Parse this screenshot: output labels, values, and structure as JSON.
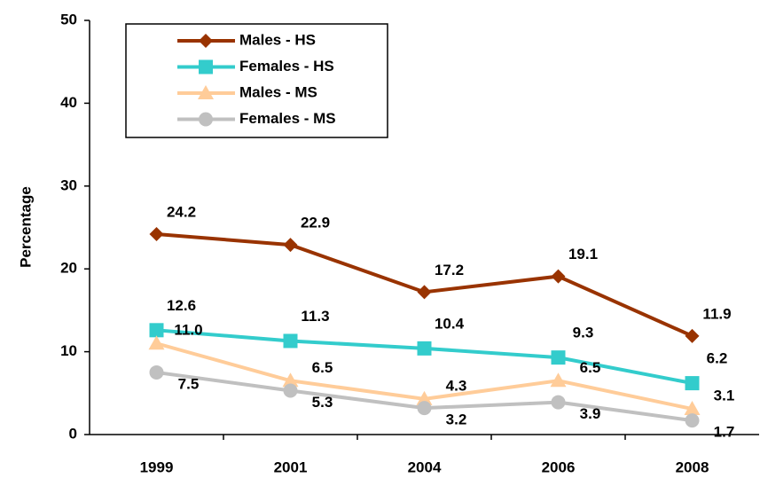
{
  "chart_data": {
    "type": "line",
    "y_label": "Percentage",
    "categories": [
      "1999",
      "2001",
      "2004",
      "2006",
      "2008"
    ],
    "ylim": [
      0,
      50
    ],
    "yticks": [
      0,
      10,
      20,
      30,
      40,
      50
    ],
    "grid": false,
    "series": [
      {
        "name": "Males - HS",
        "color": "#993300",
        "marker": "diamond",
        "values": [
          24.2,
          22.9,
          17.2,
          19.1,
          11.9
        ]
      },
      {
        "name": "Females - HS",
        "color": "#33cccc",
        "marker": "square",
        "values": [
          12.6,
          11.3,
          10.4,
          9.3,
          6.2
        ]
      },
      {
        "name": "Males - MS",
        "color": "#ffcc99",
        "marker": "triangle",
        "values": [
          11.0,
          6.5,
          4.3,
          6.5,
          3.1
        ],
        "value_labels": [
          "11.0",
          "6.5",
          "4.3",
          "6.5",
          "3.1"
        ]
      },
      {
        "name": "Females - MS",
        "color": "#c0c0c0",
        "marker": "circle",
        "values": [
          7.5,
          5.3,
          3.2,
          3.9,
          1.7
        ]
      }
    ]
  }
}
